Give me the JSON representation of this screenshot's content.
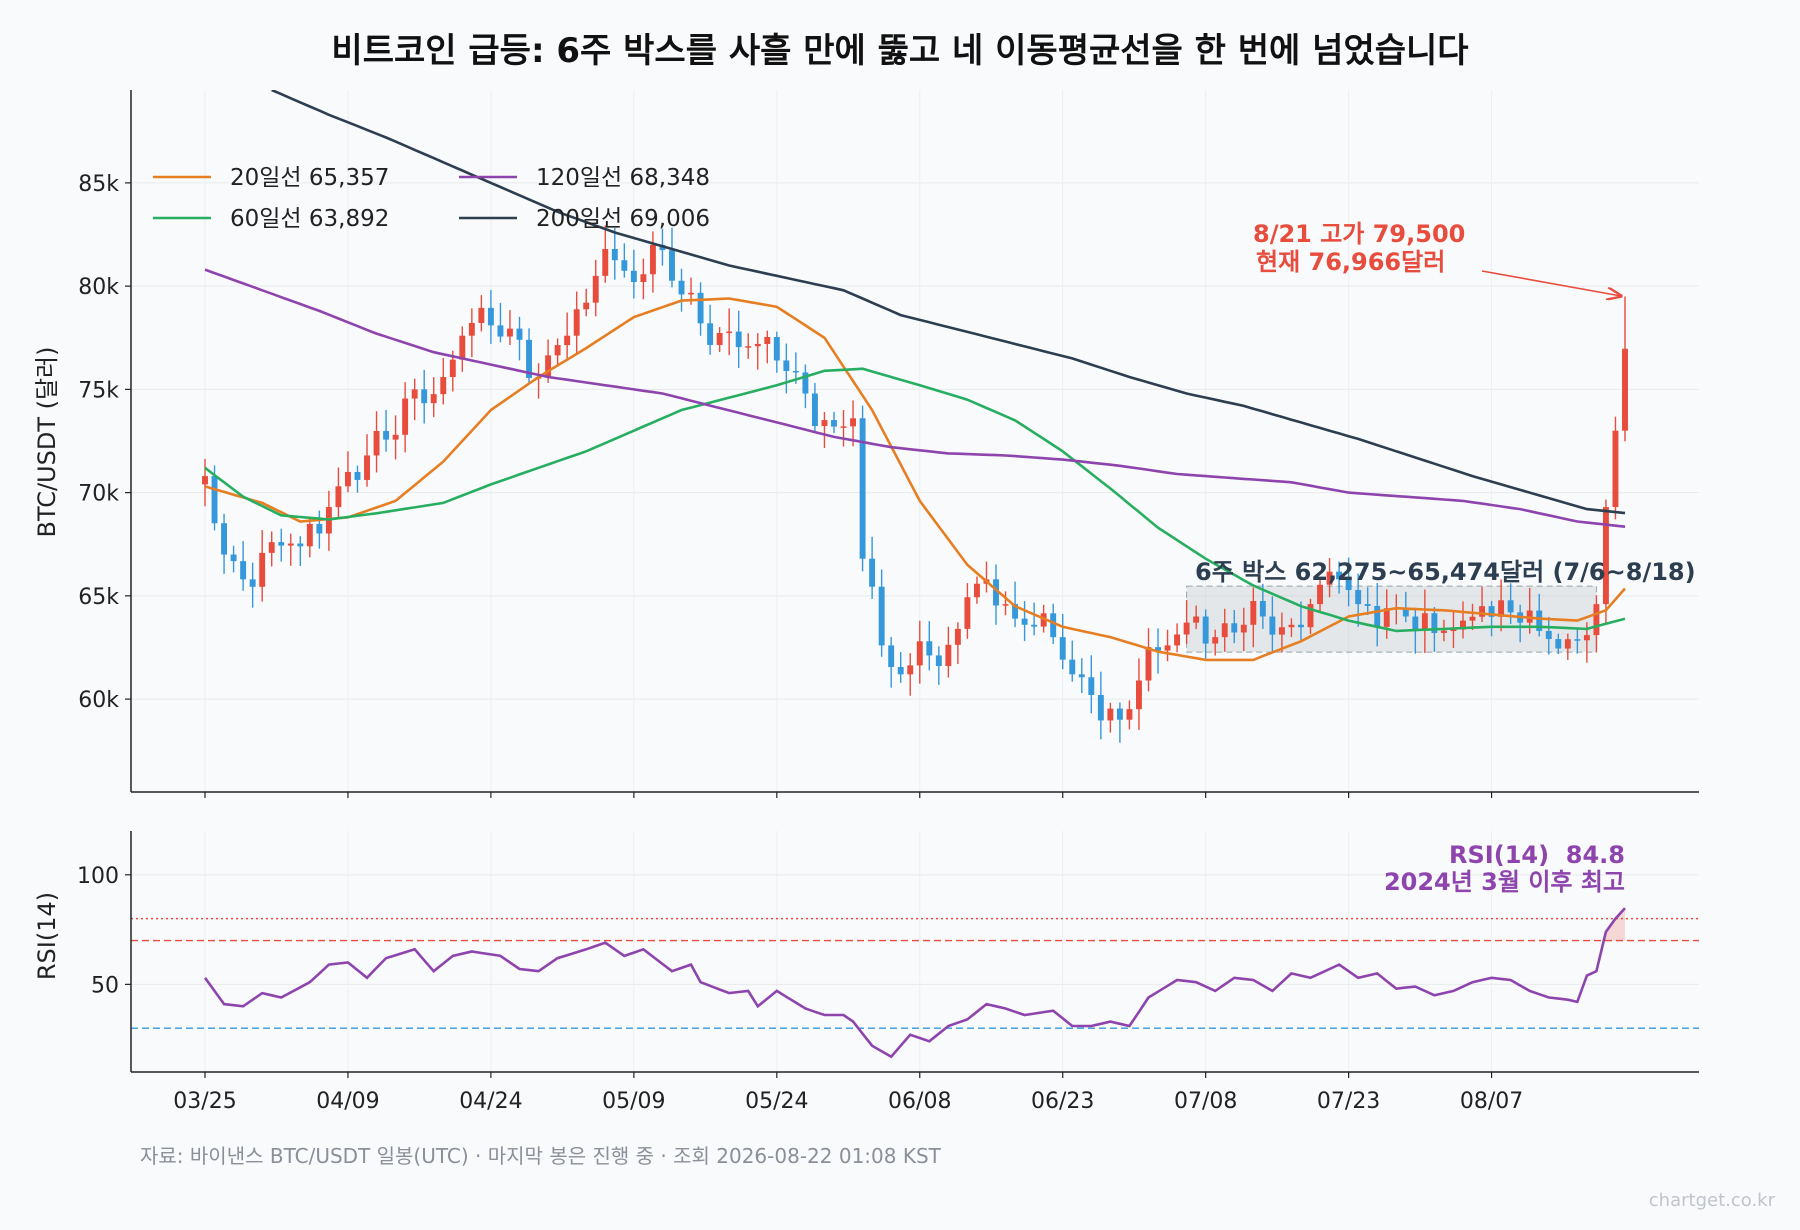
{
  "title": "비트코인 급등: 6주 박스를 사흘 만에 뚫고 네 이동평균선을 한 번에 넘었습니다",
  "source": "자료: 바이낸스 BTC/USDT 일봉(UTC) · 마지막 봉은 진행 중 · 조회 2026-08-22 01:08 KST",
  "watermark": "chartget.co.kr",
  "colors": {
    "up": "#e74c3c",
    "down": "#3498db",
    "ma20": "#e67e22",
    "ma60": "#27ae60",
    "ma120": "#8e44ad",
    "ma200": "#2c3e50",
    "rsi": "#8e44ad",
    "annotation_high": "#e74c3c",
    "annotation_box": "#2c3e50",
    "annotation_rsi": "#8e44ad"
  },
  "chart_data": [
    {
      "type": "candlestick",
      "ylabel": "BTC/USDT (달러)",
      "ylim": [
        55500,
        89500
      ],
      "yticks": [
        60000,
        65000,
        70000,
        75000,
        80000,
        85000
      ],
      "ytick_labels": [
        "60k",
        "65k",
        "70k",
        "75k",
        "80k",
        "85k"
      ],
      "x_start": "03/25",
      "x_end": "08/21",
      "xtick_labels": [
        "03/25",
        "04/09",
        "04/24",
        "05/09",
        "05/24",
        "06/08",
        "06/23",
        "07/08",
        "07/23",
        "08/07"
      ],
      "close_anchors": [
        [
          "03/25",
          70800
        ],
        [
          "03/27",
          67000
        ],
        [
          "03/29",
          65800
        ],
        [
          "04/01",
          67600
        ],
        [
          "04/04",
          67400
        ],
        [
          "04/07",
          69300
        ],
        [
          "04/09",
          71000
        ],
        [
          "04/11",
          71800
        ],
        [
          "04/14",
          72800
        ],
        [
          "04/16",
          75000
        ],
        [
          "04/19",
          75600
        ],
        [
          "04/21",
          77600
        ],
        [
          "04/24",
          78100
        ],
        [
          "04/27",
          77400
        ],
        [
          "04/29",
          75600
        ],
        [
          "05/02",
          77600
        ],
        [
          "05/04",
          79200
        ],
        [
          "05/06",
          81800
        ],
        [
          "05/09",
          80200
        ],
        [
          "05/11",
          82000
        ],
        [
          "05/14",
          79600
        ],
        [
          "05/16",
          78200
        ],
        [
          "05/19",
          77800
        ],
        [
          "05/22",
          77200
        ],
        [
          "05/24",
          76400
        ],
        [
          "05/27",
          74800
        ],
        [
          "05/30",
          73200
        ],
        [
          "06/01",
          73600
        ],
        [
          "06/02",
          66800
        ],
        [
          "06/04",
          62600
        ],
        [
          "06/06",
          61200
        ],
        [
          "06/08",
          62800
        ],
        [
          "06/10",
          61600
        ],
        [
          "06/12",
          63400
        ],
        [
          "06/15",
          65800
        ],
        [
          "06/17",
          64600
        ],
        [
          "06/19",
          63600
        ],
        [
          "06/22",
          63000
        ],
        [
          "06/24",
          61200
        ],
        [
          "06/26",
          60200
        ],
        [
          "06/29",
          59000
        ],
        [
          "07/01",
          60900
        ],
        [
          "07/04",
          62600
        ],
        [
          "07/07",
          64000
        ],
        [
          "07/09",
          63000
        ],
        [
          "07/12",
          63600
        ],
        [
          "07/14",
          64000
        ],
        [
          "07/17",
          63600
        ],
        [
          "07/19",
          64600
        ],
        [
          "07/22",
          65800
        ],
        [
          "07/24",
          64600
        ],
        [
          "07/27",
          64400
        ],
        [
          "07/29",
          64000
        ],
        [
          "08/01",
          63200
        ],
        [
          "08/04",
          63800
        ],
        [
          "08/06",
          64500
        ],
        [
          "08/09",
          64200
        ],
        [
          "08/12",
          63300
        ],
        [
          "08/15",
          62900
        ],
        [
          "08/17",
          63100
        ],
        [
          "08/18",
          64600
        ],
        [
          "08/19",
          69300
        ],
        [
          "08/20",
          73000
        ],
        [
          "08/21",
          76966
        ]
      ],
      "ma20_anchors": [
        [
          "03/25",
          70300
        ],
        [
          "03/31",
          69500
        ],
        [
          "04/04",
          68600
        ],
        [
          "04/09",
          68800
        ],
        [
          "04/14",
          69600
        ],
        [
          "04/19",
          71500
        ],
        [
          "04/24",
          74000
        ],
        [
          "04/29",
          75600
        ],
        [
          "05/04",
          77000
        ],
        [
          "05/09",
          78500
        ],
        [
          "05/14",
          79300
        ],
        [
          "05/19",
          79400
        ],
        [
          "05/24",
          79000
        ],
        [
          "05/29",
          77500
        ],
        [
          "06/03",
          74000
        ],
        [
          "06/08",
          69600
        ],
        [
          "06/13",
          66500
        ],
        [
          "06/18",
          64500
        ],
        [
          "06/23",
          63500
        ],
        [
          "06/28",
          63000
        ],
        [
          "07/03",
          62300
        ],
        [
          "07/08",
          61900
        ],
        [
          "07/13",
          61900
        ],
        [
          "07/18",
          62800
        ],
        [
          "07/23",
          64000
        ],
        [
          "07/28",
          64400
        ],
        [
          "08/02",
          64300
        ],
        [
          "08/07",
          64100
        ],
        [
          "08/12",
          63900
        ],
        [
          "08/16",
          63800
        ],
        [
          "08/19",
          64300
        ],
        [
          "08/21",
          65357
        ]
      ],
      "ma60_anchors": [
        [
          "03/25",
          71200
        ],
        [
          "03/29",
          69800
        ],
        [
          "04/02",
          68900
        ],
        [
          "04/07",
          68700
        ],
        [
          "04/12",
          69000
        ],
        [
          "04/19",
          69500
        ],
        [
          "04/24",
          70400
        ],
        [
          "04/29",
          71200
        ],
        [
          "05/04",
          72000
        ],
        [
          "05/09",
          73000
        ],
        [
          "05/14",
          74000
        ],
        [
          "05/19",
          74600
        ],
        [
          "05/24",
          75200
        ],
        [
          "05/29",
          75900
        ],
        [
          "06/02",
          76000
        ],
        [
          "06/08",
          75200
        ],
        [
          "06/13",
          74500
        ],
        [
          "06/18",
          73500
        ],
        [
          "06/23",
          72000
        ],
        [
          "06/28",
          70200
        ],
        [
          "07/03",
          68300
        ],
        [
          "07/08",
          66800
        ],
        [
          "07/13",
          65500
        ],
        [
          "07/18",
          64500
        ],
        [
          "07/23",
          63800
        ],
        [
          "07/28",
          63300
        ],
        [
          "08/02",
          63400
        ],
        [
          "08/07",
          63500
        ],
        [
          "08/12",
          63500
        ],
        [
          "08/17",
          63400
        ],
        [
          "08/21",
          63892
        ]
      ],
      "ma120_anchors": [
        [
          "03/25",
          80800
        ],
        [
          "03/31",
          79800
        ],
        [
          "04/06",
          78800
        ],
        [
          "04/12",
          77700
        ],
        [
          "04/18",
          76800
        ],
        [
          "04/24",
          76200
        ],
        [
          "04/30",
          75600
        ],
        [
          "05/06",
          75200
        ],
        [
          "05/12",
          74800
        ],
        [
          "05/18",
          74100
        ],
        [
          "05/24",
          73400
        ],
        [
          "05/30",
          72700
        ],
        [
          "06/05",
          72200
        ],
        [
          "06/11",
          71900
        ],
        [
          "06/17",
          71800
        ],
        [
          "06/23",
          71600
        ],
        [
          "06/29",
          71300
        ],
        [
          "07/05",
          70900
        ],
        [
          "07/11",
          70700
        ],
        [
          "07/17",
          70500
        ],
        [
          "07/23",
          70000
        ],
        [
          "07/29",
          69800
        ],
        [
          "08/04",
          69600
        ],
        [
          "08/10",
          69200
        ],
        [
          "08/16",
          68600
        ],
        [
          "08/21",
          68348
        ]
      ],
      "ma200_anchors": [
        [
          "04/01",
          89500
        ],
        [
          "04/07",
          88300
        ],
        [
          "04/13",
          87200
        ],
        [
          "04/19",
          86000
        ],
        [
          "04/25",
          84800
        ],
        [
          "05/01",
          83600
        ],
        [
          "05/07",
          82600
        ],
        [
          "05/13",
          81800
        ],
        [
          "05/19",
          81000
        ],
        [
          "05/25",
          80400
        ],
        [
          "05/31",
          79800
        ],
        [
          "06/06",
          78600
        ],
        [
          "06/12",
          77900
        ],
        [
          "06/18",
          77200
        ],
        [
          "06/24",
          76500
        ],
        [
          "06/30",
          75600
        ],
        [
          "07/06",
          74800
        ],
        [
          "07/12",
          74200
        ],
        [
          "07/18",
          73400
        ],
        [
          "07/24",
          72600
        ],
        [
          "07/30",
          71700
        ],
        [
          "08/05",
          70800
        ],
        [
          "08/11",
          70000
        ],
        [
          "08/17",
          69200
        ],
        [
          "08/21",
          69006
        ]
      ],
      "legend": [
        {
          "key": "ma20",
          "label": "20일선 65,357"
        },
        {
          "key": "ma60",
          "label": "60일선 63,892"
        },
        {
          "key": "ma120",
          "label": "120일선 68,348"
        },
        {
          "key": "ma200",
          "label": "200일선 69,006"
        }
      ],
      "box": {
        "from": "07/06",
        "to": "08/18",
        "low": 62275,
        "high": 65474,
        "label": "6주 박스 62,275~65,474달러 (7/6~8/18)"
      },
      "high_annotation": {
        "lines": [
          "8/21 고가 79,500",
          "현재 76,966달러"
        ],
        "date": "08/21",
        "value": 79500
      }
    },
    {
      "type": "line",
      "ylabel": "RSI(14)",
      "ylim": [
        10,
        120
      ],
      "yticks": [
        50,
        100
      ],
      "ytick_labels": [
        "50",
        "100"
      ],
      "reference_lines": [
        {
          "value": 80,
          "color": "#e74c3c",
          "style": "dotted"
        },
        {
          "value": 70,
          "color": "#e74c3c",
          "style": "dashed"
        },
        {
          "value": 30,
          "color": "#3498db",
          "style": "dashed"
        }
      ],
      "rsi_anchors": [
        [
          "03/25",
          53
        ],
        [
          "03/27",
          41
        ],
        [
          "03/29",
          40
        ],
        [
          "03/31",
          46
        ],
        [
          "04/02",
          44
        ],
        [
          "04/05",
          51
        ],
        [
          "04/07",
          59
        ],
        [
          "04/09",
          60
        ],
        [
          "04/11",
          53
        ],
        [
          "04/13",
          62
        ],
        [
          "04/16",
          66
        ],
        [
          "04/18",
          56
        ],
        [
          "04/20",
          63
        ],
        [
          "04/22",
          65
        ],
        [
          "04/25",
          63
        ],
        [
          "04/27",
          57
        ],
        [
          "04/29",
          56
        ],
        [
          "05/01",
          62
        ],
        [
          "05/04",
          66
        ],
        [
          "05/06",
          69
        ],
        [
          "05/08",
          63
        ],
        [
          "05/10",
          66
        ],
        [
          "05/13",
          56
        ],
        [
          "05/15",
          59
        ],
        [
          "05/16",
          51
        ],
        [
          "05/19",
          46
        ],
        [
          "05/21",
          47
        ],
        [
          "05/22",
          40
        ],
        [
          "05/24",
          47
        ],
        [
          "05/27",
          39
        ],
        [
          "05/29",
          36
        ],
        [
          "05/31",
          36
        ],
        [
          "06/01",
          33
        ],
        [
          "06/03",
          22
        ],
        [
          "06/05",
          17
        ],
        [
          "06/07",
          27
        ],
        [
          "06/09",
          24
        ],
        [
          "06/11",
          31
        ],
        [
          "06/13",
          34
        ],
        [
          "06/15",
          41
        ],
        [
          "06/17",
          39
        ],
        [
          "06/19",
          36
        ],
        [
          "06/22",
          38
        ],
        [
          "06/24",
          31
        ],
        [
          "06/26",
          31
        ],
        [
          "06/28",
          33
        ],
        [
          "06/30",
          31
        ],
        [
          "07/02",
          44
        ],
        [
          "07/05",
          52
        ],
        [
          "07/07",
          51
        ],
        [
          "07/09",
          47
        ],
        [
          "07/11",
          53
        ],
        [
          "07/13",
          52
        ],
        [
          "07/15",
          47
        ],
        [
          "07/17",
          55
        ],
        [
          "07/19",
          53
        ],
        [
          "07/22",
          59
        ],
        [
          "07/24",
          53
        ],
        [
          "07/26",
          55
        ],
        [
          "07/28",
          48
        ],
        [
          "07/30",
          49
        ],
        [
          "08/01",
          45
        ],
        [
          "08/03",
          47
        ],
        [
          "08/05",
          51
        ],
        [
          "08/07",
          53
        ],
        [
          "08/09",
          52
        ],
        [
          "08/11",
          47
        ],
        [
          "08/13",
          44
        ],
        [
          "08/15",
          43
        ],
        [
          "08/16",
          42
        ],
        [
          "08/17",
          54
        ],
        [
          "08/18",
          56
        ],
        [
          "08/19",
          74
        ],
        [
          "08/20",
          80
        ],
        [
          "08/21",
          84.8
        ]
      ],
      "annotation": {
        "lines": [
          "RSI(14)  84.8",
          "2024년 3월 이후 최고"
        ]
      }
    }
  ]
}
